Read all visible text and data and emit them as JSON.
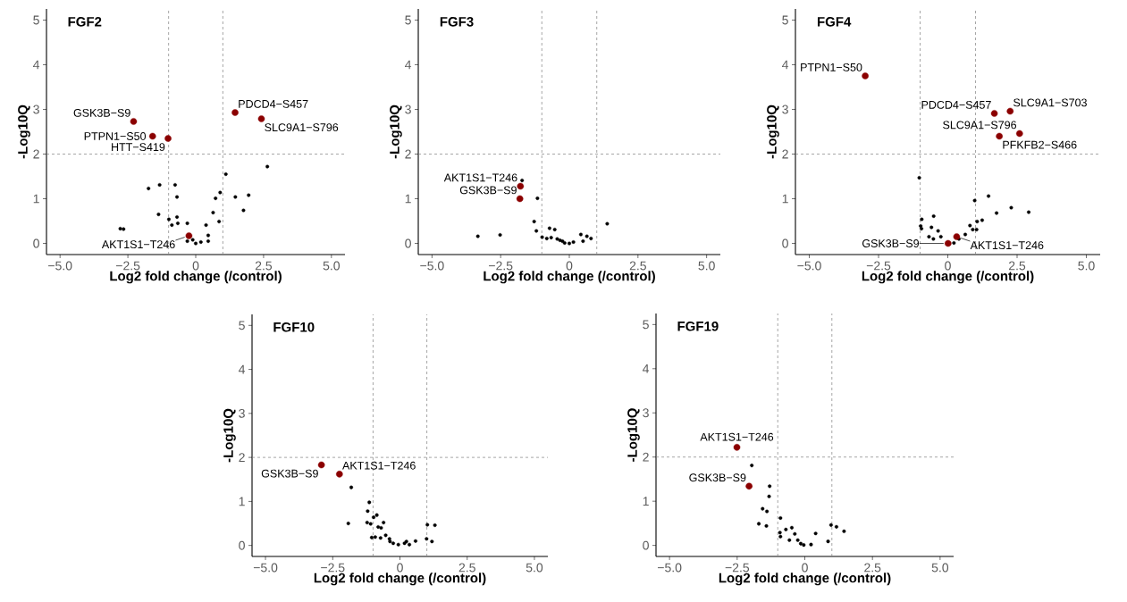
{
  "chart_data": [
    {
      "type": "scatter",
      "title": "FGF2",
      "xlabel": "Log2 fold change (/control)",
      "ylabel": "-Log10Q",
      "xlim": [
        -5.5,
        5.5
      ],
      "ylim": [
        -0.25,
        5.25
      ],
      "xticks": [
        {
          "value": -5,
          "label": "−5.0"
        },
        {
          "value": -2.5,
          "label": "−2.5"
        },
        0,
        2.5,
        {
          "value": 5,
          "label": "5.0"
        }
      ],
      "yticks": [
        0,
        1,
        2,
        3,
        4,
        5
      ],
      "ref_lines": [
        {
          "axis": "x",
          "value": -1,
          "color": "#808080",
          "line_style": "dashed"
        },
        {
          "axis": "x",
          "value": 1,
          "color": "#808080",
          "line_style": "dashed"
        },
        {
          "axis": "y",
          "value": 2,
          "color": "#808080",
          "line_style": "dashed"
        }
      ],
      "series": [
        {
          "color": "#000000",
          "x": [
            -2.78,
            -2.66,
            -1.74,
            -1.33,
            -1.37,
            -0.99,
            -0.88,
            -0.76,
            -0.69,
            -0.69,
            -0.66,
            -0.31,
            -0.31,
            -0.11,
            0,
            0.19,
            0.38,
            0.46,
            0.46,
            0.64,
            0.73,
            0.86,
            0.9,
            1.11,
            1.46,
            1.76,
            1.95,
            2.64
          ],
          "values": [
            0.33,
            0.32,
            1.23,
            1.31,
            0.65,
            0.54,
            0.41,
            1.31,
            1.04,
            0.59,
            0.45,
            0.45,
            0.05,
            0.08,
            0,
            0.03,
            0.41,
            0.18,
            0.05,
            0.69,
            1.01,
            0.49,
            1.14,
            1.55,
            1.04,
            0.74,
            1.08,
            1.72
          ]
        },
        {
          "color": "#8b0000",
          "x": [
            -2.29,
            -1.59,
            -1.02,
            1.45,
            2.42,
            -0.25
          ],
          "values": [
            2.73,
            2.4,
            2.35,
            2.93,
            2.79,
            0.17
          ]
        }
      ],
      "annotations": [
        {
          "text": "GSK3B−S9",
          "x": -2.29,
          "y": 2.73
        },
        {
          "text": "PTPN1−S50",
          "x": -1.59,
          "y": 2.4
        },
        {
          "text": "HTT−S419",
          "x": -1.02,
          "y": 2.35
        },
        {
          "text": "PDCD4−S457",
          "x": 1.45,
          "y": 2.93
        },
        {
          "text": "SLC9A1−S796",
          "x": 2.42,
          "y": 2.79
        },
        {
          "text": "AKT1S1−T246",
          "x": -0.25,
          "y": 0.17
        }
      ]
    },
    {
      "type": "scatter",
      "title": "FGF3",
      "xlabel": "Log2 fold change (/control)",
      "ylabel": "-Log10Q",
      "xlim": [
        -5.5,
        5.5
      ],
      "ylim": [
        -0.25,
        5.25
      ],
      "xticks": [
        {
          "value": -5,
          "label": "−5.0"
        },
        {
          "value": -2.5,
          "label": "−2.5"
        },
        0,
        2.5,
        {
          "value": 5,
          "label": "5.0"
        }
      ],
      "yticks": [
        0,
        1,
        2,
        3,
        4,
        5
      ],
      "ref_lines": [
        {
          "axis": "x",
          "value": -1,
          "color": "#808080",
          "line_style": "dashed"
        },
        {
          "axis": "x",
          "value": 1,
          "color": "#808080",
          "line_style": "dashed"
        },
        {
          "axis": "y",
          "value": 2,
          "color": "#808080",
          "line_style": "dashed"
        }
      ],
      "series": [
        {
          "color": "#000000",
          "x": [
            -1.72,
            -1.16,
            -1.28,
            -1.2,
            -0.99,
            -3.33,
            -2.52,
            -0.72,
            -0.53,
            -0.66,
            -0.44,
            -0.34,
            -0.17,
            0,
            0.15,
            0.42,
            0.5,
            0.64,
            0.79,
            1.38,
            -0.82,
            -0.25
          ],
          "values": [
            1.41,
            1.01,
            0.49,
            0.28,
            0.14,
            0.16,
            0.19,
            0.34,
            0.31,
            0.13,
            0.1,
            0.07,
            0.01,
            0,
            0.03,
            0.2,
            0.05,
            0.16,
            0.11,
            0.44,
            0.11,
            0.05
          ]
        },
        {
          "color": "#8b0000",
          "x": [
            -1.78,
            -1.8
          ],
          "values": [
            1.28,
            1.0
          ]
        }
      ],
      "annotations": [
        {
          "text": "AKT1S1−T246",
          "x": -1.78,
          "y": 1.28
        },
        {
          "text": "GSK3B−S9",
          "x": -1.8,
          "y": 1.0
        }
      ]
    },
    {
      "type": "scatter",
      "title": "FGF4",
      "xlabel": "Log2 fold change (/control)",
      "ylabel": "-Log10Q",
      "xlim": [
        -5.5,
        5.5
      ],
      "ylim": [
        -0.25,
        5.25
      ],
      "xticks": [
        {
          "value": -5,
          "label": "−5.0"
        },
        {
          "value": -2.5,
          "label": "−2.5"
        },
        0,
        2.5,
        {
          "value": 5,
          "label": "5.0"
        }
      ],
      "yticks": [
        0,
        1,
        2,
        3,
        4,
        5
      ],
      "ref_lines": [
        {
          "axis": "x",
          "value": -1,
          "color": "#808080",
          "line_style": "dashed"
        },
        {
          "axis": "x",
          "value": 1,
          "color": "#808080",
          "line_style": "dashed"
        },
        {
          "axis": "y",
          "value": 2,
          "color": "#808080",
          "line_style": "dashed"
        }
      ],
      "series": [
        {
          "color": "#000000",
          "x": [
            -1.03,
            -0.94,
            -0.98,
            -0.95,
            -0.51,
            -0.59,
            -0.68,
            -0.52,
            -0.35,
            -0.25,
            0.22,
            0.4,
            0.63,
            0.8,
            0.9,
            0.97,
            1.04,
            1.06,
            1.24,
            1.47,
            1.76,
            2.29,
            2.92
          ],
          "values": [
            1.47,
            0.54,
            0.39,
            0.33,
            0.61,
            0.36,
            0.15,
            0.1,
            0.28,
            0.15,
            0.01,
            0.1,
            0.2,
            0.4,
            0.31,
            0.96,
            0.31,
            0.49,
            0.52,
            1.06,
            0.68,
            0.8,
            0.7
          ]
        },
        {
          "color": "#8b0000",
          "x": [
            -2.98,
            1.68,
            2.25,
            2.59,
            1.86,
            0.01,
            0.32
          ],
          "values": [
            3.75,
            2.91,
            2.96,
            2.46,
            2.4,
            0.0,
            0.15
          ]
        }
      ],
      "annotations": [
        {
          "text": "PTPN1−S50",
          "x": -2.98,
          "y": 3.75
        },
        {
          "text": "PDCD4−S457",
          "x": 1.68,
          "y": 2.91
        },
        {
          "text": "SLC9A1−S703",
          "x": 2.25,
          "y": 2.96
        },
        {
          "text": "SLC9A1−S796",
          "x": 2.59,
          "y": 2.46
        },
        {
          "text": "PFKFB2−S466",
          "x": 1.86,
          "y": 2.4
        },
        {
          "text": "GSK3B−S9",
          "x": 0.01,
          "y": 0.0
        },
        {
          "text": "AKT1S1−T246",
          "x": 0.32,
          "y": 0.15
        }
      ]
    },
    {
      "type": "scatter",
      "title": "FGF10",
      "xlabel": "Log2 fold change (/control)",
      "ylabel": "-Log10Q",
      "xlim": [
        -5.5,
        5.5
      ],
      "ylim": [
        -0.25,
        5.25
      ],
      "xticks": [
        {
          "value": -5,
          "label": "−5.0"
        },
        {
          "value": -2.5,
          "label": "−2.5"
        },
        0,
        2.5,
        {
          "value": 5,
          "label": "5.0"
        }
      ],
      "yticks": [
        0,
        1,
        2,
        3,
        4,
        5
      ],
      "ref_lines": [
        {
          "axis": "x",
          "value": -1,
          "color": "#808080",
          "line_style": "dashed"
        },
        {
          "axis": "x",
          "value": 1,
          "color": "#808080",
          "line_style": "dashed"
        },
        {
          "axis": "y",
          "value": 2,
          "color": "#808080",
          "line_style": "dashed"
        }
      ],
      "series": [
        {
          "color": "#000000",
          "x": [
            -1.81,
            -1.92,
            -1.14,
            -1.2,
            -1.22,
            -1.09,
            -1.05,
            -0.92,
            -0.98,
            -0.86,
            -0.81,
            -0.7,
            -0.61,
            -0.72,
            -0.53,
            -0.39,
            -0.37,
            -0.25,
            -0.06,
            0.17,
            0.24,
            0.35,
            0.58,
            1.02,
            1.3,
            0.99,
            1.19
          ],
          "values": [
            1.32,
            0.5,
            0.98,
            0.78,
            0.52,
            0.49,
            0.18,
            0.19,
            0.64,
            0.69,
            0.42,
            0.4,
            0.52,
            0.17,
            0.23,
            0.15,
            0.09,
            0.05,
            0.02,
            0.05,
            0.09,
            0.02,
            0.1,
            0.47,
            0.46,
            0.15,
            0.09
          ]
        },
        {
          "color": "#8b0000",
          "x": [
            -2.92,
            -2.25
          ],
          "values": [
            1.83,
            1.62
          ]
        }
      ],
      "annotations": [
        {
          "text": "GSK3B−S9",
          "x": -2.92,
          "y": 1.83
        },
        {
          "text": "AKT1S1−T246",
          "x": -2.25,
          "y": 1.62
        }
      ]
    },
    {
      "type": "scatter",
      "title": "FGF19",
      "xlabel": "Log2 fold change (/control)",
      "ylabel": "-Log10Q",
      "xlim": [
        -5.5,
        5.5
      ],
      "ylim": [
        -0.25,
        5.25
      ],
      "xticks": [
        {
          "value": -5,
          "label": "−5.0"
        },
        {
          "value": -2.5,
          "label": "−2.5"
        },
        0,
        2.5,
        {
          "value": 5,
          "label": "5.0"
        }
      ],
      "yticks": [
        0,
        1,
        2,
        3,
        4,
        5
      ],
      "ref_lines": [
        {
          "axis": "x",
          "value": -1,
          "color": "#808080",
          "line_style": "dashed"
        },
        {
          "axis": "x",
          "value": 1,
          "color": "#808080",
          "line_style": "dashed"
        },
        {
          "axis": "y",
          "value": 2,
          "color": "#808080",
          "line_style": "dashed"
        }
      ],
      "series": [
        {
          "color": "#000000",
          "x": [
            -1.96,
            -1.3,
            -1.32,
            -1.56,
            -1.4,
            -1.7,
            -1.42,
            -0.9,
            -0.92,
            -0.9,
            -0.7,
            -0.48,
            -0.57,
            -0.37,
            -0.26,
            -0.15,
            -0.04,
            0.23,
            0.4,
            0.86,
            0.97,
            1.17,
            1.45
          ],
          "values": [
            1.81,
            1.34,
            1.11,
            0.83,
            0.77,
            0.49,
            0.44,
            0.62,
            0.29,
            0.2,
            0.36,
            0.4,
            0.12,
            0.26,
            0.12,
            0.04,
            0.01,
            0.02,
            0.27,
            0.09,
            0.46,
            0.42,
            0.32
          ]
        },
        {
          "color": "#8b0000",
          "x": [
            -2.51,
            -2.06
          ],
          "values": [
            2.22,
            1.34
          ]
        }
      ],
      "annotations": [
        {
          "text": "AKT1S1−T246",
          "x": -2.51,
          "y": 2.22
        },
        {
          "text": "GSK3B−S9",
          "x": -2.06,
          "y": 1.34
        }
      ]
    }
  ]
}
